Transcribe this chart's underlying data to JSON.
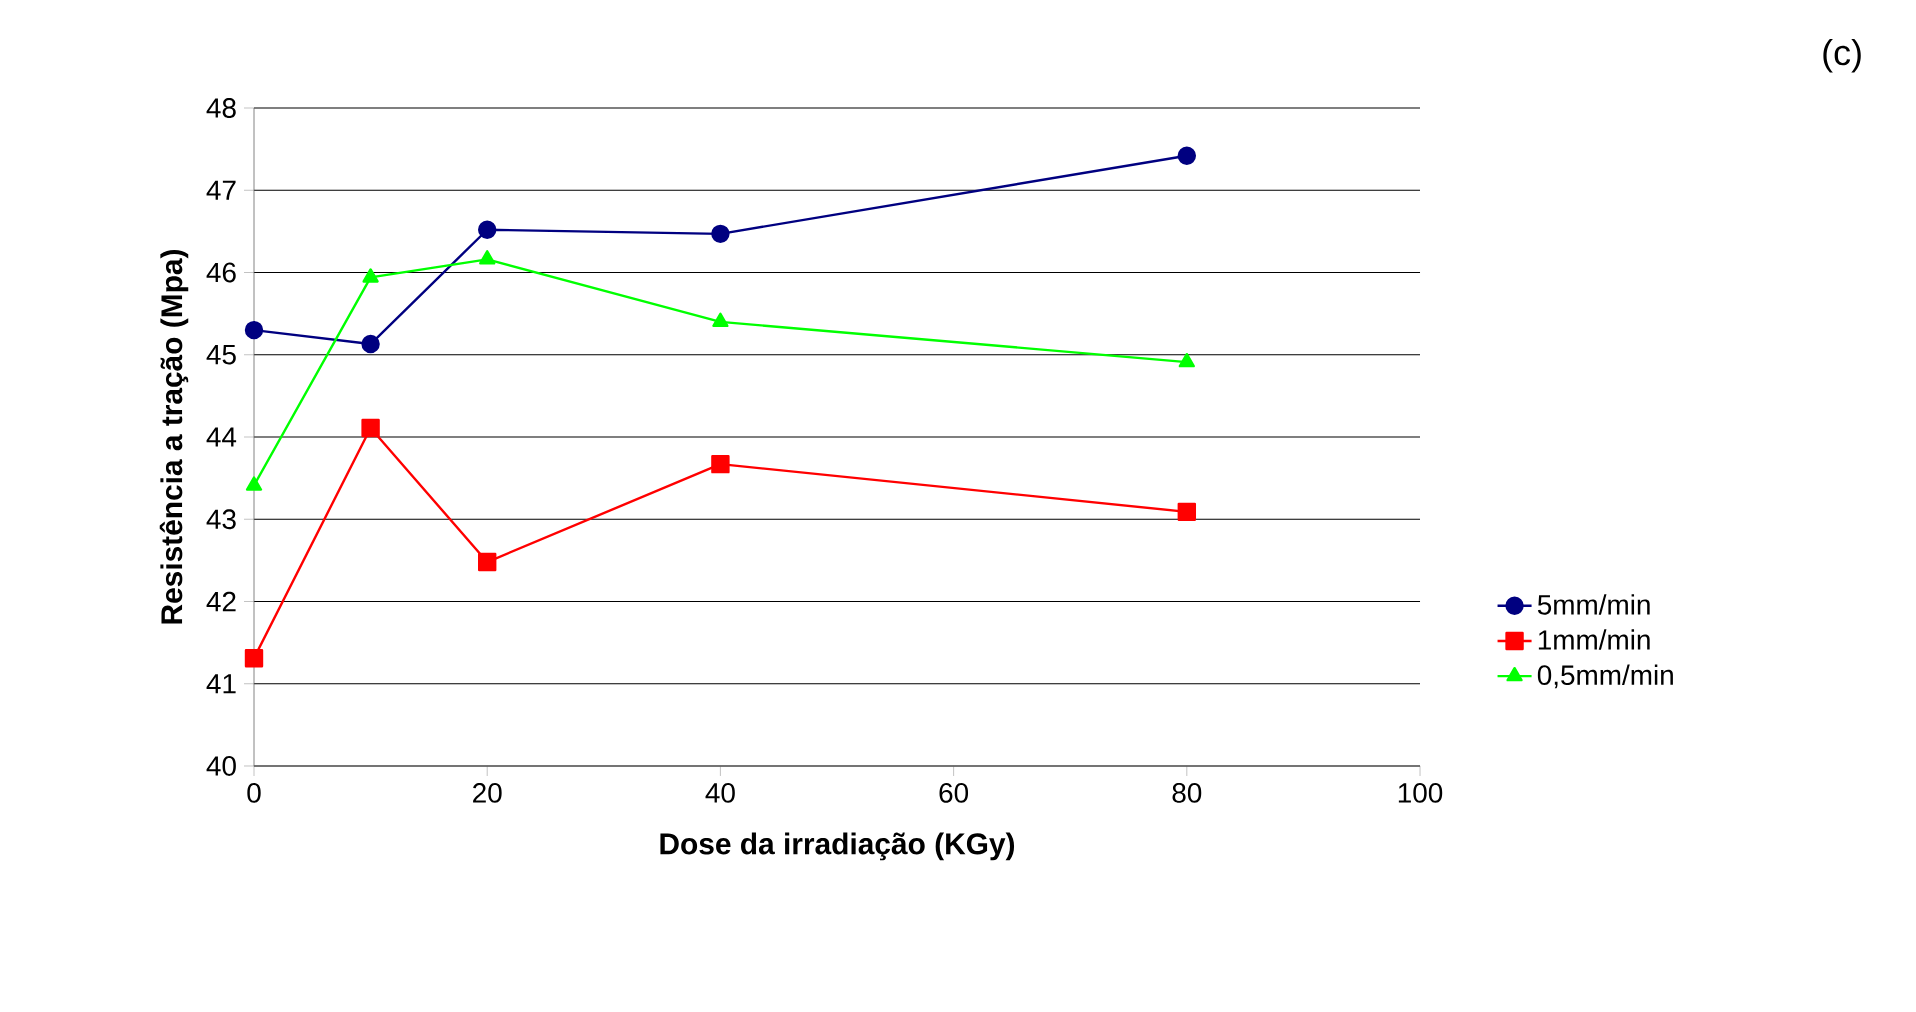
{
  "chart_data": {
    "type": "line",
    "xlabel": "Dose da irradiação (KGy)",
    "ylabel": "Resistência a tração (Mpa)",
    "annotations": [
      "(c)"
    ],
    "xlim": [
      0,
      100
    ],
    "xticks": [
      0,
      20,
      40,
      60,
      80,
      100
    ],
    "ylim": [
      40,
      48
    ],
    "yticks": [
      40,
      41,
      42,
      43,
      44,
      45,
      46,
      47,
      48
    ],
    "grid": "y",
    "legend": "right",
    "x": [
      0,
      10,
      20,
      40,
      80
    ],
    "series": [
      {
        "name": "5mm/min",
        "color": "#000080",
        "marker": "circle",
        "values": [
          45.3,
          45.13,
          46.52,
          46.47,
          47.42
        ]
      },
      {
        "name": "1mm/min",
        "color": "#ff0000",
        "marker": "square",
        "values": [
          41.31,
          44.11,
          42.48,
          43.67,
          43.09
        ]
      },
      {
        "name": "0,5mm/min",
        "color": "#00ff00",
        "marker": "triangle",
        "values": [
          43.41,
          45.94,
          46.16,
          45.4,
          44.91
        ]
      }
    ]
  }
}
